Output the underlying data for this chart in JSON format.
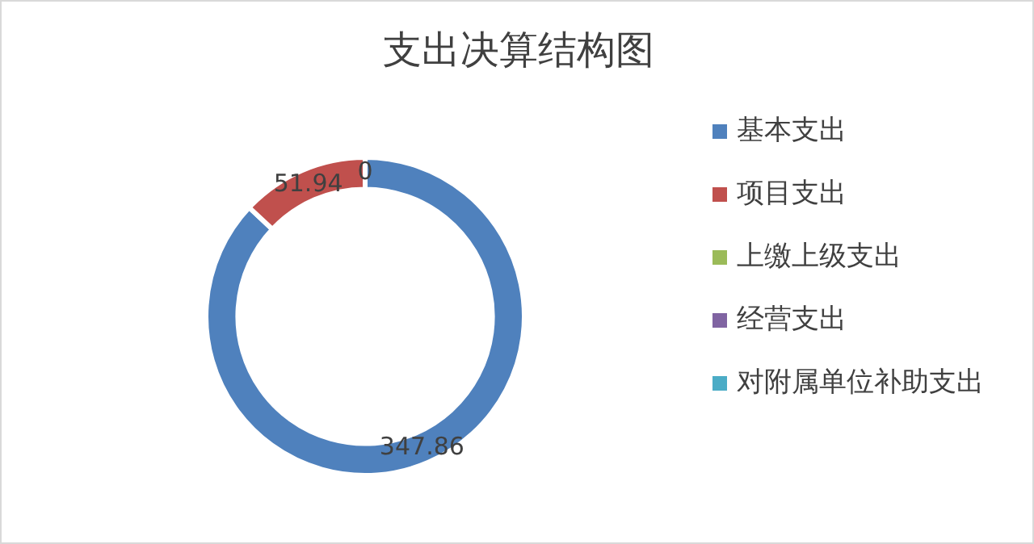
{
  "chart_data": {
    "type": "donut",
    "title": "支出决算结构图",
    "categories": [
      "基本支出",
      "项目支出",
      "上缴上级支出",
      "经营支出",
      "对附属单位补助支出"
    ],
    "values": [
      347.86,
      51.94,
      0,
      0,
      0
    ],
    "colors": [
      "#4f81bd",
      "#c0504d",
      "#9bbb59",
      "#8064a2",
      "#4bacc6"
    ],
    "value_labels": [
      "347.86",
      "51.94",
      "0",
      null,
      null
    ],
    "legend": "right"
  }
}
